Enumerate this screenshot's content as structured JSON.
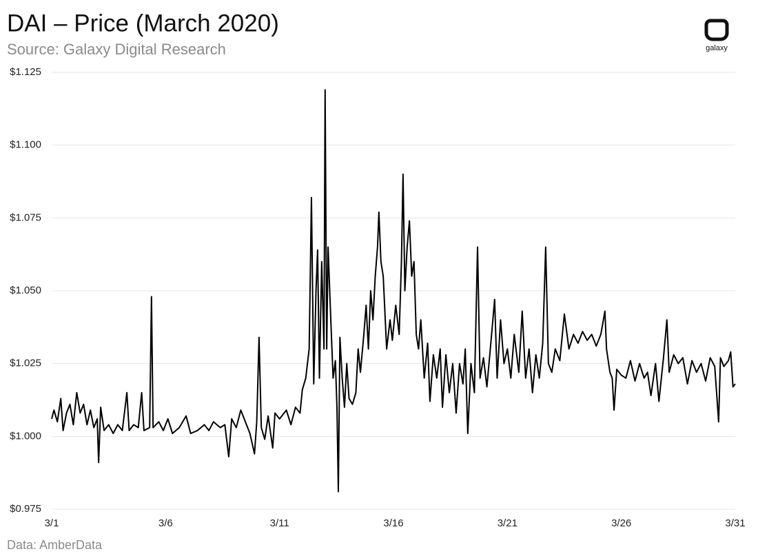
{
  "chart_data": {
    "type": "line",
    "title": "DAI – Price (March 2020)",
    "subtitle": "Source: Galaxy Digital Research",
    "source": "Data: AmberData",
    "logo": "galaxy",
    "color": "#000000",
    "grid": true,
    "xlim": [
      1,
      31
    ],
    "xticks": [
      {
        "value": 1,
        "label": "3/1"
      },
      {
        "value": 6,
        "label": "3/6"
      },
      {
        "value": 11,
        "label": "3/11"
      },
      {
        "value": 16,
        "label": "3/16"
      },
      {
        "value": 21,
        "label": "3/21"
      },
      {
        "value": 26,
        "label": "3/26"
      },
      {
        "value": 31,
        "label": "3/31"
      }
    ],
    "ylim": [
      0.975,
      1.125
    ],
    "yticks": [
      {
        "value": 0.975,
        "label": "$0.975"
      },
      {
        "value": 1.0,
        "label": "$1.000"
      },
      {
        "value": 1.025,
        "label": "$1.025"
      },
      {
        "value": 1.05,
        "label": "$1.050"
      },
      {
        "value": 1.075,
        "label": "$1.075"
      },
      {
        "value": 1.1,
        "label": "$1.100"
      },
      {
        "value": 1.125,
        "label": "$1.125"
      }
    ],
    "x": [
      1.0,
      1.1,
      1.25,
      1.4,
      1.5,
      1.65,
      1.8,
      1.95,
      2.1,
      2.25,
      2.4,
      2.55,
      2.7,
      2.85,
      3.0,
      3.06,
      3.15,
      3.3,
      3.5,
      3.7,
      3.9,
      4.1,
      4.3,
      4.4,
      4.6,
      4.8,
      4.95,
      5.05,
      5.3,
      5.38,
      5.45,
      5.7,
      5.9,
      6.1,
      6.3,
      6.6,
      6.9,
      7.1,
      7.4,
      7.7,
      7.9,
      8.1,
      8.4,
      8.6,
      8.77,
      8.9,
      9.1,
      9.3,
      9.5,
      9.7,
      9.9,
      10.0,
      10.1,
      10.2,
      10.35,
      10.5,
      10.7,
      10.8,
      11.0,
      11.3,
      11.5,
      11.7,
      11.9,
      12.0,
      12.15,
      12.3,
      12.4,
      12.5,
      12.6,
      12.67,
      12.75,
      12.85,
      12.95,
      13.0,
      13.07,
      13.13,
      13.25,
      13.35,
      13.45,
      13.52,
      13.58,
      13.65,
      13.75,
      13.85,
      13.95,
      14.05,
      14.2,
      14.35,
      14.45,
      14.55,
      14.7,
      14.8,
      14.9,
      15.0,
      15.1,
      15.2,
      15.3,
      15.36,
      15.45,
      15.55,
      15.7,
      15.85,
      15.95,
      16.1,
      16.25,
      16.35,
      16.42,
      16.5,
      16.6,
      16.7,
      16.8,
      16.9,
      17.0,
      17.1,
      17.2,
      17.35,
      17.5,
      17.6,
      17.75,
      17.9,
      18.05,
      18.15,
      18.3,
      18.45,
      18.6,
      18.75,
      18.9,
      19.05,
      19.15,
      19.26,
      19.4,
      19.55,
      19.69,
      19.8,
      19.95,
      20.1,
      20.25,
      20.44,
      20.55,
      20.7,
      20.85,
      21.0,
      21.15,
      21.3,
      21.5,
      21.65,
      21.8,
      21.95,
      22.1,
      22.25,
      22.4,
      22.55,
      22.68,
      22.8,
      22.95,
      23.1,
      23.3,
      23.5,
      23.7,
      23.9,
      24.1,
      24.3,
      24.5,
      24.7,
      24.9,
      25.1,
      25.28,
      25.35,
      25.5,
      25.6,
      25.68,
      25.8,
      26.0,
      26.2,
      26.4,
      26.6,
      26.8,
      27.0,
      27.15,
      27.3,
      27.5,
      27.65,
      27.85,
      28.0,
      28.1,
      28.3,
      28.5,
      28.7,
      28.9,
      29.1,
      29.3,
      29.5,
      29.7,
      29.9,
      30.1,
      30.27,
      30.35,
      30.5,
      30.7,
      30.8,
      30.9,
      31.0
    ],
    "values": [
      1.006,
      1.009,
      1.005,
      1.013,
      1.002,
      1.008,
      1.011,
      1.004,
      1.015,
      1.008,
      1.011,
      1.004,
      1.009,
      1.003,
      1.006,
      0.991,
      1.01,
      1.002,
      1.004,
      1.001,
      1.004,
      1.002,
      1.015,
      1.002,
      1.004,
      1.003,
      1.015,
      1.002,
      1.003,
      1.048,
      1.003,
      1.005,
      1.002,
      1.006,
      1.001,
      1.003,
      1.007,
      1.001,
      1.002,
      1.004,
      1.002,
      1.005,
      1.003,
      1.004,
      0.993,
      1.006,
      1.003,
      1.009,
      1.005,
      1.001,
      0.994,
      1.005,
      1.034,
      1.003,
      0.999,
      1.007,
      0.996,
      1.008,
      1.006,
      1.009,
      1.004,
      1.01,
      1.008,
      1.016,
      1.02,
      1.03,
      1.082,
      1.018,
      1.05,
      1.064,
      1.02,
      1.06,
      1.03,
      1.119,
      1.03,
      1.065,
      1.04,
      1.02,
      1.026,
      1.01,
      0.981,
      1.034,
      1.02,
      1.01,
      1.025,
      1.013,
      1.011,
      1.015,
      1.03,
      1.022,
      1.035,
      1.045,
      1.03,
      1.05,
      1.04,
      1.055,
      1.065,
      1.077,
      1.06,
      1.055,
      1.03,
      1.04,
      1.033,
      1.045,
      1.035,
      1.06,
      1.09,
      1.05,
      1.065,
      1.074,
      1.055,
      1.06,
      1.035,
      1.03,
      1.04,
      1.02,
      1.032,
      1.012,
      1.028,
      1.02,
      1.03,
      1.01,
      1.028,
      1.015,
      1.025,
      1.008,
      1.025,
      1.018,
      1.03,
      1.001,
      1.025,
      1.015,
      1.065,
      1.02,
      1.027,
      1.017,
      1.03,
      1.047,
      1.02,
      1.04,
      1.025,
      1.03,
      1.02,
      1.035,
      1.022,
      1.043,
      1.02,
      1.03,
      1.015,
      1.028,
      1.02,
      1.032,
      1.065,
      1.025,
      1.022,
      1.03,
      1.026,
      1.042,
      1.03,
      1.035,
      1.032,
      1.036,
      1.033,
      1.035,
      1.031,
      1.035,
      1.043,
      1.03,
      1.022,
      1.02,
      1.009,
      1.023,
      1.021,
      1.02,
      1.026,
      1.019,
      1.025,
      1.02,
      1.022,
      1.014,
      1.025,
      1.012,
      1.027,
      1.04,
      1.022,
      1.028,
      1.025,
      1.027,
      1.018,
      1.026,
      1.022,
      1.025,
      1.019,
      1.027,
      1.024,
      1.005,
      1.027,
      1.024,
      1.026,
      1.029,
      1.017,
      1.018
    ]
  }
}
